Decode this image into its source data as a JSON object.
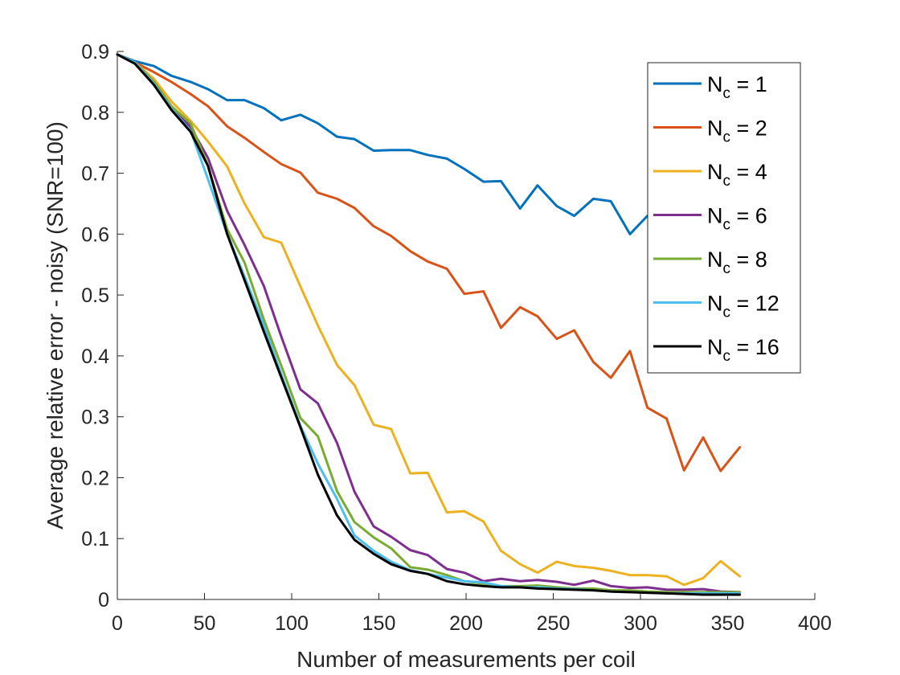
{
  "chart_data": {
    "type": "line",
    "title": "",
    "xlabel": "Number of measurements per coil",
    "ylabel": "Average relative error - noisy (SNR=100)",
    "xlim": [
      0,
      400
    ],
    "ylim": [
      0,
      0.9
    ],
    "xticks": [
      0,
      50,
      100,
      150,
      200,
      250,
      300,
      350,
      400
    ],
    "yticks": [
      0,
      0.1,
      0.2,
      0.3,
      0.4,
      0.5,
      0.6,
      0.7,
      0.8,
      0.9
    ],
    "xtick_labels": [
      "0",
      "50",
      "100",
      "150",
      "200",
      "250",
      "300",
      "350",
      "400"
    ],
    "ytick_labels": [
      "0",
      "0.1",
      "0.2",
      "0.3",
      "0.4",
      "0.5",
      "0.6",
      "0.7",
      "0.8",
      "0.9"
    ],
    "grid": false,
    "legend_position": "top-right",
    "x": [
      0,
      10,
      21,
      31,
      42,
      52,
      63,
      73,
      84,
      94,
      105,
      115,
      126,
      136,
      147,
      157,
      168,
      178,
      189,
      199,
      210,
      220,
      231,
      241,
      252,
      262,
      273,
      283,
      294,
      304,
      315,
      325,
      336,
      346,
      357
    ],
    "series": [
      {
        "name_main": "N",
        "name_sub": "c",
        "name_rest": " = 1",
        "color": "#0072BD",
        "values": [
          0.895,
          0.884,
          0.876,
          0.86,
          0.85,
          0.838,
          0.82,
          0.82,
          0.807,
          0.787,
          0.796,
          0.782,
          0.76,
          0.756,
          0.737,
          0.738,
          0.738,
          0.73,
          0.724,
          0.707,
          0.686,
          0.687,
          0.642,
          0.68,
          0.646,
          0.63,
          0.658,
          0.654,
          0.6,
          0.63,
          null,
          null,
          null,
          null,
          null
        ]
      },
      {
        "name_main": "N",
        "name_sub": "c",
        "name_rest": " = 2",
        "color": "#D95319",
        "values": [
          0.895,
          0.882,
          0.866,
          0.85,
          0.83,
          0.81,
          0.777,
          0.758,
          0.735,
          0.715,
          0.701,
          0.668,
          0.658,
          0.643,
          0.613,
          0.597,
          0.572,
          0.555,
          0.543,
          0.502,
          0.506,
          0.446,
          0.48,
          0.465,
          0.428,
          0.442,
          0.39,
          0.364,
          0.408,
          0.315,
          0.297,
          0.212,
          0.266,
          0.211,
          0.25
        ]
      },
      {
        "name_main": "N",
        "name_sub": "c",
        "name_rest": " = 4",
        "color": "#EDB120",
        "values": [
          0.895,
          0.882,
          0.855,
          0.818,
          0.786,
          0.752,
          0.711,
          0.65,
          0.595,
          0.586,
          0.514,
          0.45,
          0.385,
          0.352,
          0.287,
          0.28,
          0.207,
          0.208,
          0.143,
          0.145,
          0.128,
          0.08,
          0.058,
          0.044,
          0.062,
          0.055,
          0.052,
          0.047,
          0.04,
          0.04,
          0.038,
          0.024,
          0.035,
          0.063,
          0.038
        ]
      },
      {
        "name_main": "N",
        "name_sub": "c",
        "name_rest": " = 6",
        "color": "#7E2F8E",
        "values": [
          0.895,
          0.882,
          0.85,
          0.81,
          0.776,
          0.725,
          0.638,
          0.582,
          0.515,
          0.432,
          0.345,
          0.322,
          0.257,
          0.177,
          0.12,
          0.103,
          0.081,
          0.073,
          0.05,
          0.044,
          0.03,
          0.034,
          0.03,
          0.032,
          0.029,
          0.024,
          0.031,
          0.022,
          0.019,
          0.02,
          0.016,
          0.016,
          0.017,
          0.013,
          0.012
        ]
      },
      {
        "name_main": "N",
        "name_sub": "c",
        "name_rest": " = 8",
        "color": "#77AC30",
        "values": [
          0.895,
          0.882,
          0.85,
          0.81,
          0.782,
          0.712,
          0.608,
          0.553,
          0.46,
          0.384,
          0.298,
          0.268,
          0.178,
          0.127,
          0.102,
          0.084,
          0.053,
          0.049,
          0.04,
          0.03,
          0.026,
          0.022,
          0.022,
          0.023,
          0.02,
          0.018,
          0.018,
          0.015,
          0.015,
          0.013,
          0.012,
          0.012,
          0.012,
          0.012,
          0.012
        ]
      },
      {
        "name_main": "N",
        "name_sub": "c",
        "name_rest": " = 12",
        "color": "#4DBEEE",
        "values": [
          0.895,
          0.882,
          0.847,
          0.806,
          0.77,
          0.69,
          0.6,
          0.53,
          0.45,
          0.37,
          0.285,
          0.223,
          0.165,
          0.105,
          0.08,
          0.062,
          0.048,
          0.042,
          0.036,
          0.03,
          0.028,
          0.022,
          0.02,
          0.02,
          0.018,
          0.017,
          0.015,
          0.013,
          0.012,
          0.011,
          0.01,
          0.01,
          0.01,
          0.01,
          0.01
        ]
      },
      {
        "name_main": "N",
        "name_sub": "c",
        "name_rest": " = 16",
        "color": "#000000",
        "values": [
          0.895,
          0.88,
          0.845,
          0.804,
          0.768,
          0.712,
          0.6,
          0.524,
          0.44,
          0.365,
          0.283,
          0.205,
          0.138,
          0.098,
          0.075,
          0.058,
          0.047,
          0.042,
          0.03,
          0.025,
          0.022,
          0.02,
          0.02,
          0.018,
          0.017,
          0.016,
          0.015,
          0.013,
          0.012,
          0.011,
          0.01,
          0.009,
          0.008,
          0.008,
          0.008
        ]
      }
    ]
  }
}
